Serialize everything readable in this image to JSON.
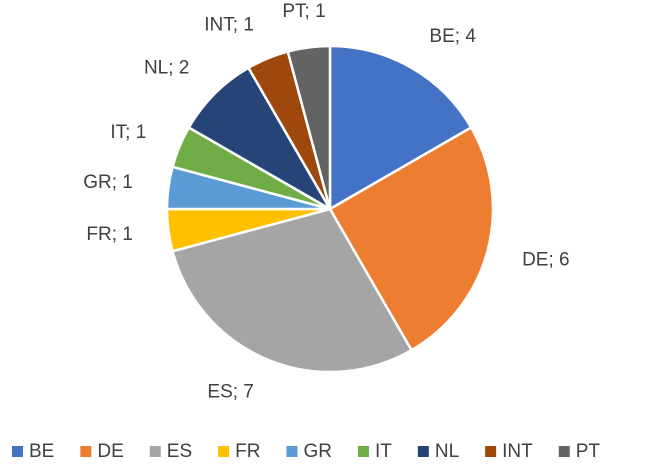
{
  "chart_data": {
    "type": "pie",
    "categories": [
      "BE",
      "DE",
      "ES",
      "FR",
      "GR",
      "IT",
      "NL",
      "INT",
      "PT"
    ],
    "values": [
      4,
      6,
      7,
      1,
      1,
      1,
      2,
      1,
      1
    ],
    "value_labels": [
      "BE; 4",
      "DE; 6",
      "ES; 7",
      "FR; 1",
      "GR; 1",
      "IT; 1",
      "NL; 2",
      "INT; 1",
      "PT; 1"
    ],
    "colors": [
      "#4472c4",
      "#ed7d31",
      "#a5a5a5",
      "#ffc000",
      "#5b9bd5",
      "#70ad47",
      "#264478",
      "#9e480e",
      "#636363"
    ],
    "legend": "bottom"
  }
}
